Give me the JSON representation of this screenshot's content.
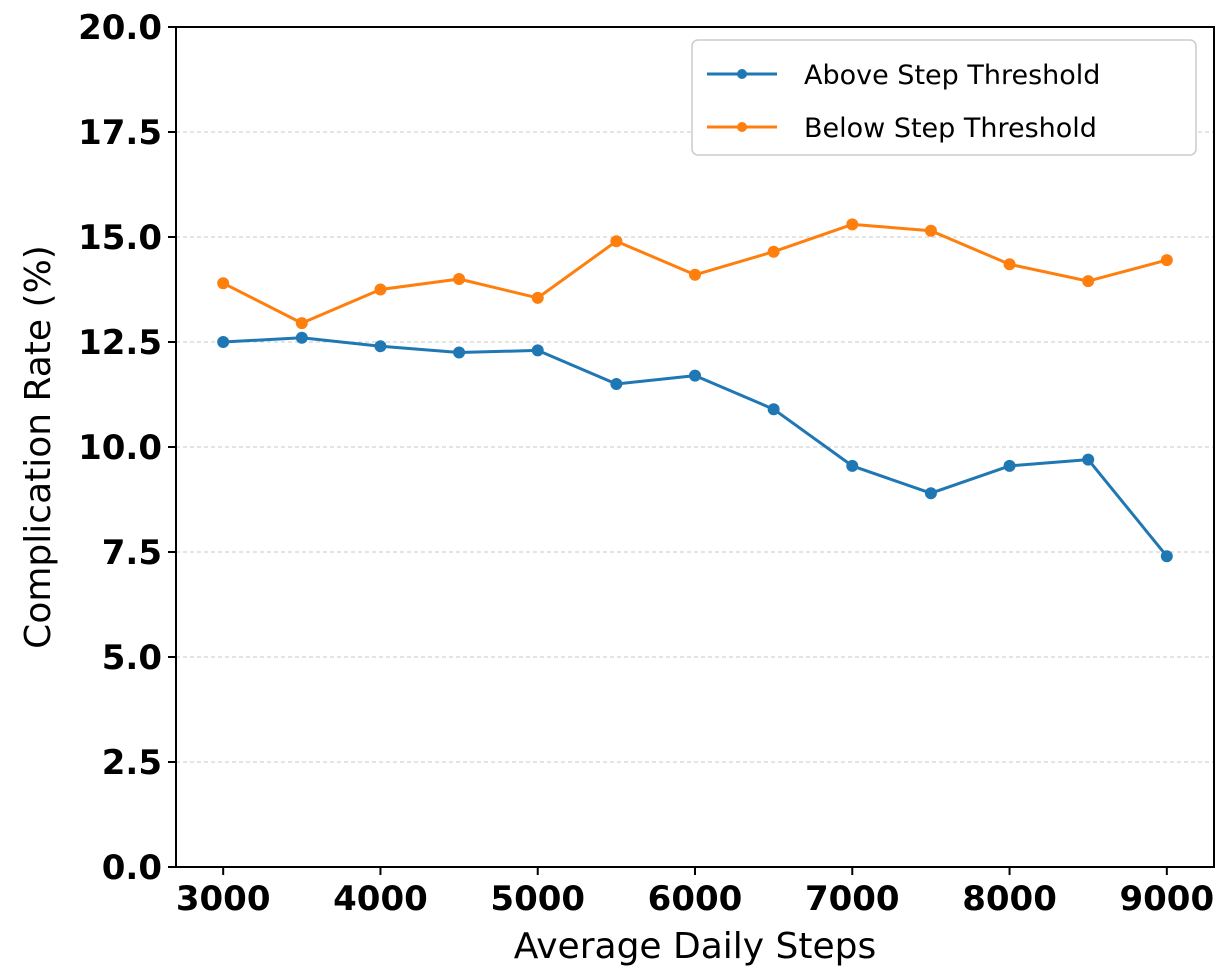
{
  "chart_data": {
    "type": "line",
    "title": "",
    "xlabel": "Average Daily Steps",
    "ylabel": "Complication Rate (%)",
    "xlim": [
      2700,
      9300
    ],
    "ylim": [
      0,
      20
    ],
    "grid": "horizontal",
    "legend_position": "top-right",
    "x": [
      3000,
      3500,
      4000,
      4500,
      5000,
      5500,
      6000,
      6500,
      7000,
      7500,
      8000,
      8500,
      9000
    ],
    "xticks": [
      3000,
      4000,
      5000,
      6000,
      7000,
      8000,
      9000
    ],
    "xtick_labels": [
      "3000",
      "4000",
      "5000",
      "6000",
      "7000",
      "8000",
      "9000"
    ],
    "yticks": [
      0,
      2.5,
      5,
      7.5,
      10,
      12.5,
      15,
      17.5,
      20
    ],
    "ytick_labels": [
      "0.0",
      "2.5",
      "5.0",
      "7.5",
      "10.0",
      "12.5",
      "15.0",
      "17.5",
      "20.0"
    ],
    "series": [
      {
        "name": "Above Step Threshold",
        "color": "#1f77b4",
        "values": [
          12.5,
          12.6,
          12.4,
          12.25,
          12.3,
          11.5,
          11.7,
          10.9,
          9.55,
          8.9,
          9.55,
          9.7,
          7.4
        ]
      },
      {
        "name": "Below Step Threshold",
        "color": "#ff7f0e",
        "values": [
          13.9,
          12.95,
          13.75,
          14.0,
          13.55,
          14.9,
          14.1,
          14.65,
          15.3,
          15.15,
          14.35,
          13.95,
          14.45
        ]
      }
    ]
  }
}
